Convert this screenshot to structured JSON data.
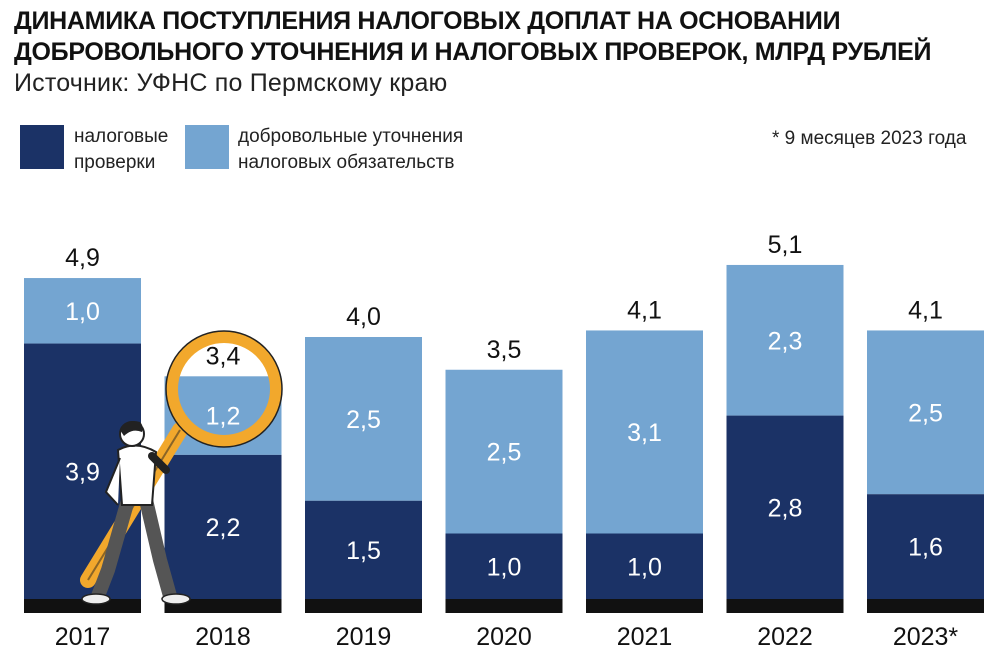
{
  "header": {
    "title": "ДИНАМИКА ПОСТУПЛЕНИЯ НАЛОГОВЫХ ДОПЛАТ НА ОСНОВАНИИ ДОБРОВОЛЬНОГО УТОЧНЕНИЯ И НАЛОГОВЫХ ПРОВЕРОК, МЛРД РУБЛЕЙ",
    "source": "Источник: УФНС по Пермскому краю"
  },
  "legend": {
    "items": [
      {
        "label_line1": "налоговые",
        "label_line2": "проверки",
        "color": "#1b3266"
      },
      {
        "label_line1": "добровольные уточнения",
        "label_line2": "налоговых обязательств",
        "color": "#74a5d1"
      }
    ],
    "note": "* 9 месяцев 2023 года"
  },
  "colors": {
    "dark": "#1b3266",
    "light": "#74a5d1",
    "base": "#111111",
    "magnifier": "#f2a82c"
  },
  "chart_data": {
    "type": "bar",
    "stacked": true,
    "categories": [
      "2017",
      "2018",
      "2019",
      "2020",
      "2021",
      "2022",
      "2023*"
    ],
    "series": [
      {
        "name": "налоговые проверки",
        "values": [
          3.9,
          2.2,
          1.5,
          1.0,
          1.0,
          2.8,
          1.6
        ],
        "labels": [
          "3,9",
          "2,2",
          "1,5",
          "1,0",
          "1,0",
          "2,8",
          "1,6"
        ]
      },
      {
        "name": "добровольные уточнения налоговых обязательств",
        "values": [
          1.0,
          1.2,
          2.5,
          2.5,
          3.1,
          2.3,
          2.5
        ],
        "labels": [
          "1,0",
          "1,2",
          "2,5",
          "2,5",
          "3,1",
          "2,3",
          "2,5"
        ]
      }
    ],
    "totals": [
      4.9,
      3.4,
      4.0,
      3.5,
      4.1,
      5.1,
      4.1
    ],
    "total_labels": [
      "4,9",
      "3,4",
      "4,0",
      "3,5",
      "4,1",
      "5,1",
      "4,1"
    ],
    "legend_position": "top-left",
    "grid": false
  }
}
